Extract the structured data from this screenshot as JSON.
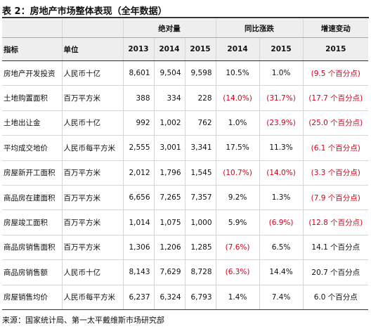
{
  "title": "表 2：房地产市场整体表现（全年数据）",
  "header": {
    "group_headers": [
      "绝对量",
      "同比涨跌",
      "增速变动"
    ],
    "col_indicator": "指标",
    "col_unit": "单位",
    "years": [
      "2013",
      "2014",
      "2015",
      "2014",
      "2015",
      "2015"
    ]
  },
  "rows": [
    {
      "indicator": "房地产开发投资",
      "unit": "人民币十亿",
      "v2013": "8,601",
      "v2014": "9,504",
      "v2015": "9,598",
      "g2014": "10.5%",
      "g2015": "1.0%",
      "d2015": "(9.5 个百分点)"
    },
    {
      "indicator": "土地购置面积",
      "unit": "百万平方米",
      "v2013": "388",
      "v2014": "334",
      "v2015": "228",
      "g2014": "(14.0%)",
      "g2015": "(31.7%)",
      "d2015": "(17.7 个百分点)"
    },
    {
      "indicator": "土地出让金",
      "unit": "人民币十亿",
      "v2013": "992",
      "v2014": "1,002",
      "v2015": "762",
      "g2014": "1.0%",
      "g2015": "(23.9%)",
      "d2015": "(25.0 个百分点)"
    },
    {
      "indicator": "平均成交地价",
      "unit": "人民币每平方米",
      "v2013": "2,555",
      "v2014": "3,001",
      "v2015": "3,341",
      "g2014": "17.5%",
      "g2015": "11.3%",
      "d2015": "(6.1 个百分点)"
    },
    {
      "indicator": "房屋新开工面积",
      "unit": "百万平方米",
      "v2013": "2,012",
      "v2014": "1,796",
      "v2015": "1,545",
      "g2014": "(10.7%)",
      "g2015": "(14.0%)",
      "d2015": "(3.3 个百分点)"
    },
    {
      "indicator": "商品房在建面积",
      "unit": "百万平方米",
      "v2013": "6,656",
      "v2014": "7,265",
      "v2015": "7,357",
      "g2014": "9.2%",
      "g2015": "1.3%",
      "d2015": "(7.9 个百分点)"
    },
    {
      "indicator": "房屋竣工面积",
      "unit": "百万平方米",
      "v2013": "1,014",
      "v2014": "1,075",
      "v2015": "1,000",
      "g2014": "5.9%",
      "g2015": "(6.9%)",
      "d2015": "(12.8 个百分点)"
    },
    {
      "indicator": "商品房销售面积",
      "unit": "百万平方米",
      "v2013": "1,306",
      "v2014": "1,206",
      "v2015": "1,285",
      "g2014": "(7.6%)",
      "g2015": "6.5%",
      "d2015": "14.1 个百分点"
    },
    {
      "indicator": "商品房销售额",
      "unit": "人民币十亿",
      "v2013": "8,143",
      "v2014": "7,629",
      "v2015": "8,728",
      "g2014": "(6.3%)",
      "g2015": "14.4%",
      "d2015": "20.7 个百分点"
    },
    {
      "indicator": "房屋销售均价",
      "unit": "人民币每平方米",
      "v2013": "6,237",
      "v2014": "6,324",
      "v2015": "6,793",
      "g2014": "1.4%",
      "g2015": "7.4%",
      "d2015": "6.0 个百分点"
    }
  ],
  "source": "来源：国家统计局、第一太平戴维斯市场研究部",
  "colors": {
    "negative": "#d0021b",
    "header_bg": "#eeeeee",
    "text": "#111111"
  }
}
